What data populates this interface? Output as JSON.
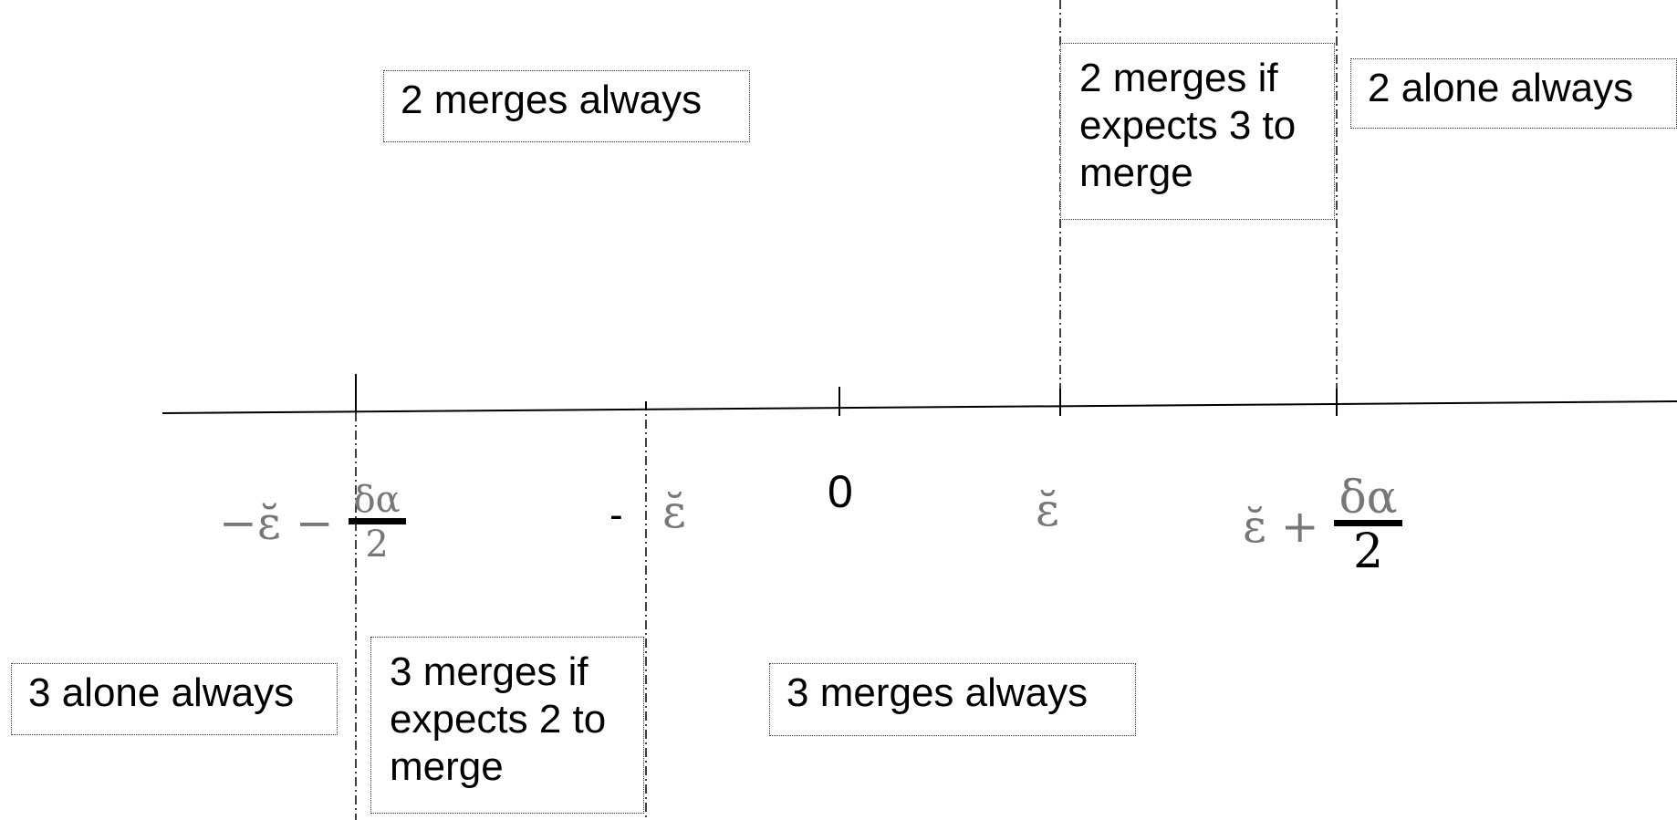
{
  "regions": {
    "r1": "2 merges always",
    "r2": "2 merges if expects 3 to merge",
    "r3": "2 alone always",
    "r4": "3 alone always",
    "r5": "3 merges if expects 2 to merge",
    "r6": "3 merges always"
  },
  "axis_labels": {
    "minus_eps_minus_half": {
      "lead": "−ε̆ −",
      "num": "δα",
      "den": "2"
    },
    "minus_sign": "-",
    "minus_eps": "ε̆",
    "zero": "0",
    "eps": "ε̆",
    "eps_plus_half": {
      "lead": "ε̆ +",
      "num": "δα",
      "den": "2"
    }
  },
  "colors": {
    "line": "#000000",
    "box_border": "#333333",
    "math_text": "#777777"
  }
}
